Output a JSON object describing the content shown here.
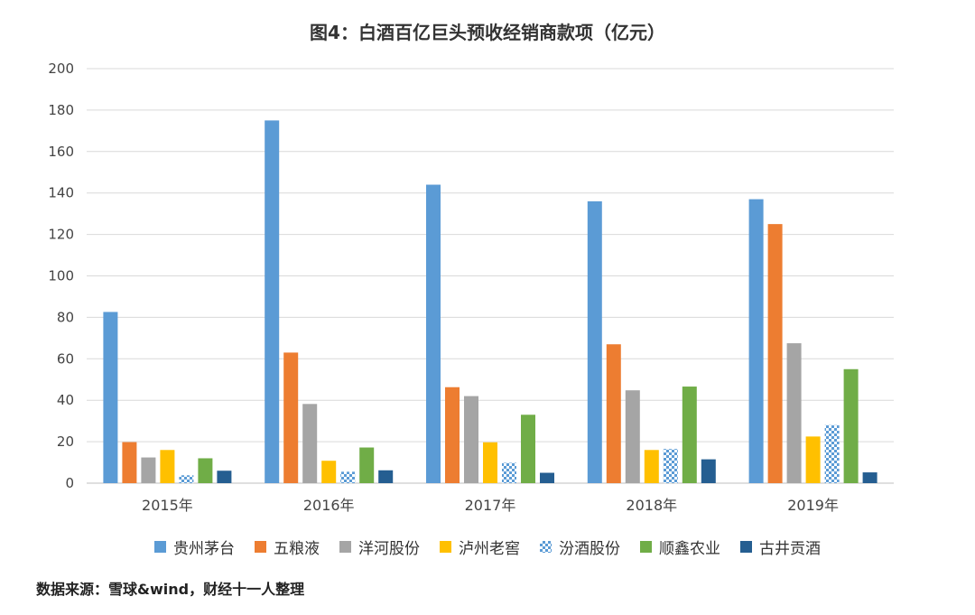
{
  "chart_data": {
    "type": "bar",
    "title": "图4：白酒百亿巨头预收经销商款项（亿元）",
    "xlabel": "",
    "ylabel": "",
    "ylim": [
      0,
      200
    ],
    "yticks": [
      0,
      20,
      40,
      60,
      80,
      100,
      120,
      140,
      160,
      180,
      200
    ],
    "categories": [
      "2015年",
      "2016年",
      "2017年",
      "2018年",
      "2019年"
    ],
    "grid": true,
    "legend_position": "bottom",
    "series": [
      {
        "name": "贵州茅台",
        "color": "#5b9bd5",
        "pattern": "solid",
        "values": [
          82.6,
          175,
          144,
          136,
          137
        ]
      },
      {
        "name": "五粮液",
        "color": "#ed7d31",
        "pattern": "solid",
        "values": [
          19.8,
          63,
          46.3,
          67,
          125
        ]
      },
      {
        "name": "洋河股份",
        "color": "#a5a5a5",
        "pattern": "solid",
        "values": [
          12.4,
          38.2,
          42,
          44.8,
          67.5
        ]
      },
      {
        "name": "泸州老窖",
        "color": "#ffc000",
        "pattern": "solid",
        "values": [
          16,
          10.8,
          19.7,
          16,
          22.5
        ]
      },
      {
        "name": "汾酒股份",
        "color": "#5b9bd5",
        "pattern": "checker",
        "values": [
          3.8,
          5.5,
          9.8,
          16.5,
          28
        ]
      },
      {
        "name": "顺鑫农业",
        "color": "#70ad47",
        "pattern": "solid",
        "values": [
          12,
          17.2,
          33,
          46.6,
          55
        ]
      },
      {
        "name": "古井贡酒",
        "color": "#255e91",
        "pattern": "solid",
        "values": [
          6,
          6.2,
          5,
          11.5,
          5.2
        ]
      }
    ]
  },
  "source_note": "数据来源：雪球&wind，财经十一人整理"
}
